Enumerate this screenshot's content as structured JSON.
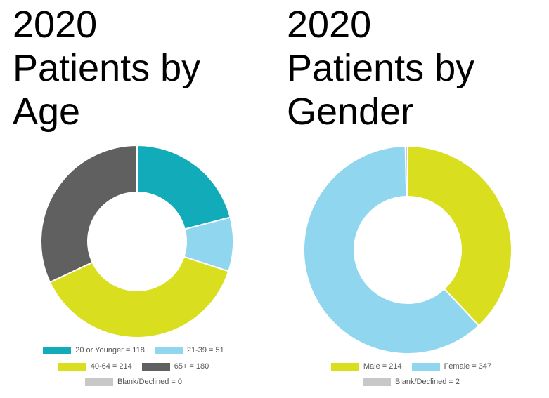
{
  "charts": [
    {
      "title_line1": "2020",
      "title_line2": "Patients by",
      "title_line3": "Age"
    },
    {
      "title_line1": "2020",
      "title_line2": "Patients by",
      "title_line3": "Gender"
    }
  ],
  "chart_data": [
    {
      "type": "pie",
      "variant": "donut",
      "title": "2020 Patients by Age",
      "categories": [
        "20 or Younger",
        "21-39",
        "40-64",
        "65+",
        "Blank/Declined"
      ],
      "values": [
        118,
        51,
        214,
        180,
        0
      ],
      "colors": [
        "#12abb9",
        "#8fd6ee",
        "#d9df1f",
        "#606060",
        "#c8c8c8"
      ],
      "legend_labels": [
        "20 or Younger = 118",
        "21-39 = 51",
        "40-64 = 214",
        "65+ = 180",
        "Blank/Declined = 0"
      ],
      "legend_position": "bottom"
    },
    {
      "type": "pie",
      "variant": "donut",
      "title": "2020 Patients by Gender",
      "categories": [
        "Male",
        "Female",
        "Blank/Declined"
      ],
      "values": [
        214,
        347,
        2
      ],
      "colors": [
        "#d9df1f",
        "#8fd6ee",
        "#c8c8c8"
      ],
      "legend_labels": [
        "Male = 214",
        "Female = 347",
        "Blank/Declined = 2"
      ],
      "legend_position": "bottom"
    }
  ]
}
